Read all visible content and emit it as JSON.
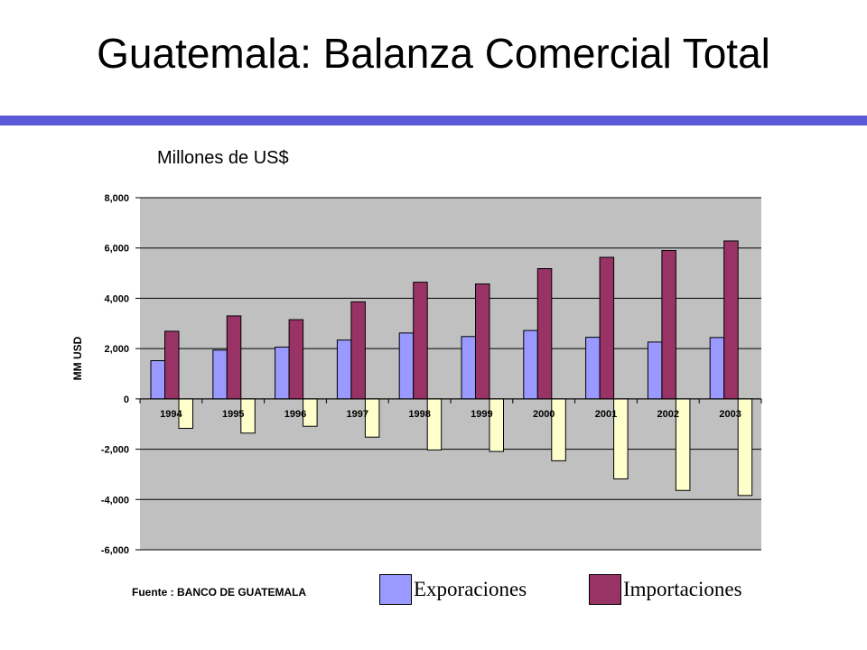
{
  "slide": {
    "title": "Guatemala: Balanza Comercial Total",
    "subtitle": "Millones de US$",
    "source": "Fuente : BANCO DE GUATEMALA"
  },
  "colors": {
    "rule": "#5a5ad8",
    "plot_background": "#c0c0c0",
    "exports": "#9999ff",
    "imports": "#993366",
    "balance": "#ffffcc"
  },
  "chart_data": {
    "type": "bar",
    "ylabel": "MM USD",
    "ylim": [
      -6000,
      8000
    ],
    "yticks": [
      8000,
      6000,
      4000,
      2000,
      0,
      -2000,
      -4000,
      -6000
    ],
    "ytick_labels": [
      "8,000",
      "6,000",
      "4,000",
      "2,000",
      "0",
      "-2,000",
      "-4,000",
      "-6,000"
    ],
    "grid": true,
    "legend_position": "bottom",
    "categories": [
      "1994",
      "1995",
      "1996",
      "1997",
      "1998",
      "1999",
      "2000",
      "2001",
      "2002",
      "2003"
    ],
    "series": [
      {
        "name": "Exporaciones",
        "color": "#9999ff",
        "values": [
          1520,
          1940,
          2060,
          2340,
          2620,
          2480,
          2720,
          2450,
          2260,
          2440
        ]
      },
      {
        "values": [
          2690,
          3300,
          3150,
          3860,
          4640,
          4570,
          5180,
          5630,
          5900,
          6280
        ],
        "name": "Importaciones",
        "color": "#993366"
      },
      {
        "color": "#ffffcc",
        "values": [
          -1170,
          -1360,
          -1090,
          -1520,
          -2030,
          -2090,
          -2460,
          -3180,
          -3640,
          -3840
        ]
      }
    ]
  }
}
